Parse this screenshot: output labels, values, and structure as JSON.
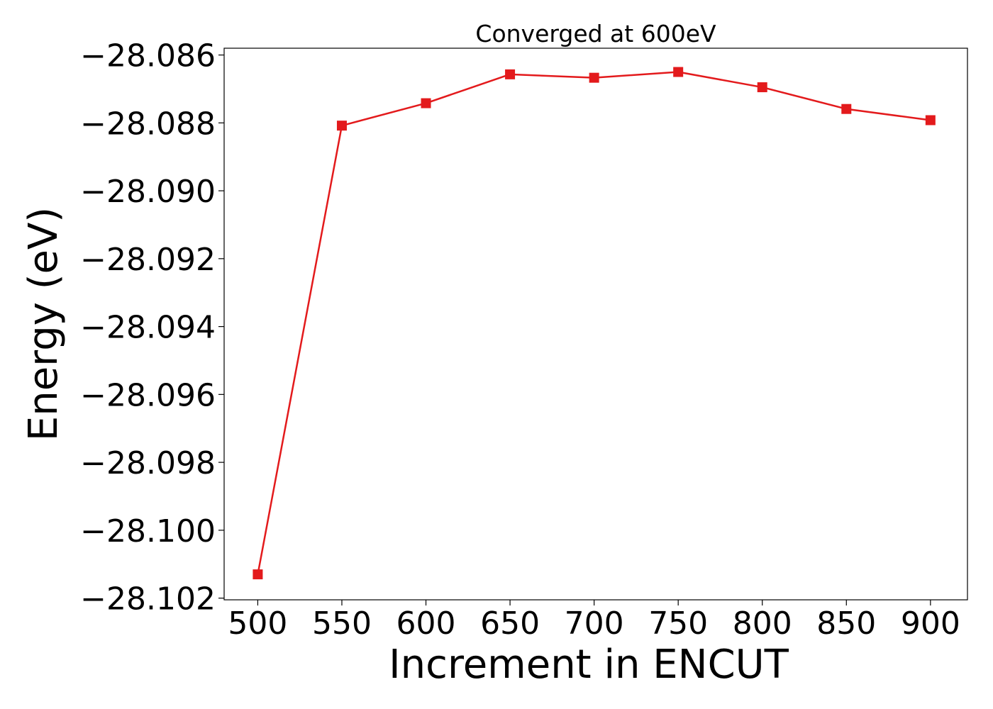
{
  "chart_data": {
    "type": "line",
    "title": "Converged at 600eV",
    "xlabel": "Increment in ENCUT",
    "ylabel": "Energy (eV)",
    "x": [
      500,
      550,
      600,
      650,
      700,
      750,
      800,
      850,
      900
    ],
    "series": [
      {
        "values": [
          -28.1013,
          -28.08808,
          -28.08742,
          -28.08657,
          -28.08667,
          -28.0865,
          -28.08695,
          -28.08759,
          -28.08792
        ],
        "color": "#e31a1c",
        "marker": "square"
      }
    ],
    "xticks": [
      500,
      550,
      600,
      650,
      700,
      750,
      800,
      850,
      900
    ],
    "xtick_labels": [
      "500",
      "550",
      "600",
      "650",
      "700",
      "750",
      "800",
      "850",
      "900"
    ],
    "yticks": [
      -28.086,
      -28.088,
      -28.09,
      -28.092,
      -28.094,
      -28.096,
      -28.098,
      -28.1,
      -28.102
    ],
    "ytick_labels": [
      "−28.086",
      "−28.088",
      "−28.090",
      "−28.092",
      "−28.094",
      "−28.096",
      "−28.098",
      "−28.100",
      "−28.102"
    ],
    "xlim": [
      480,
      922
    ],
    "ylim": [
      -28.10205,
      -28.0858
    ],
    "grid": false,
    "legend": "none"
  }
}
